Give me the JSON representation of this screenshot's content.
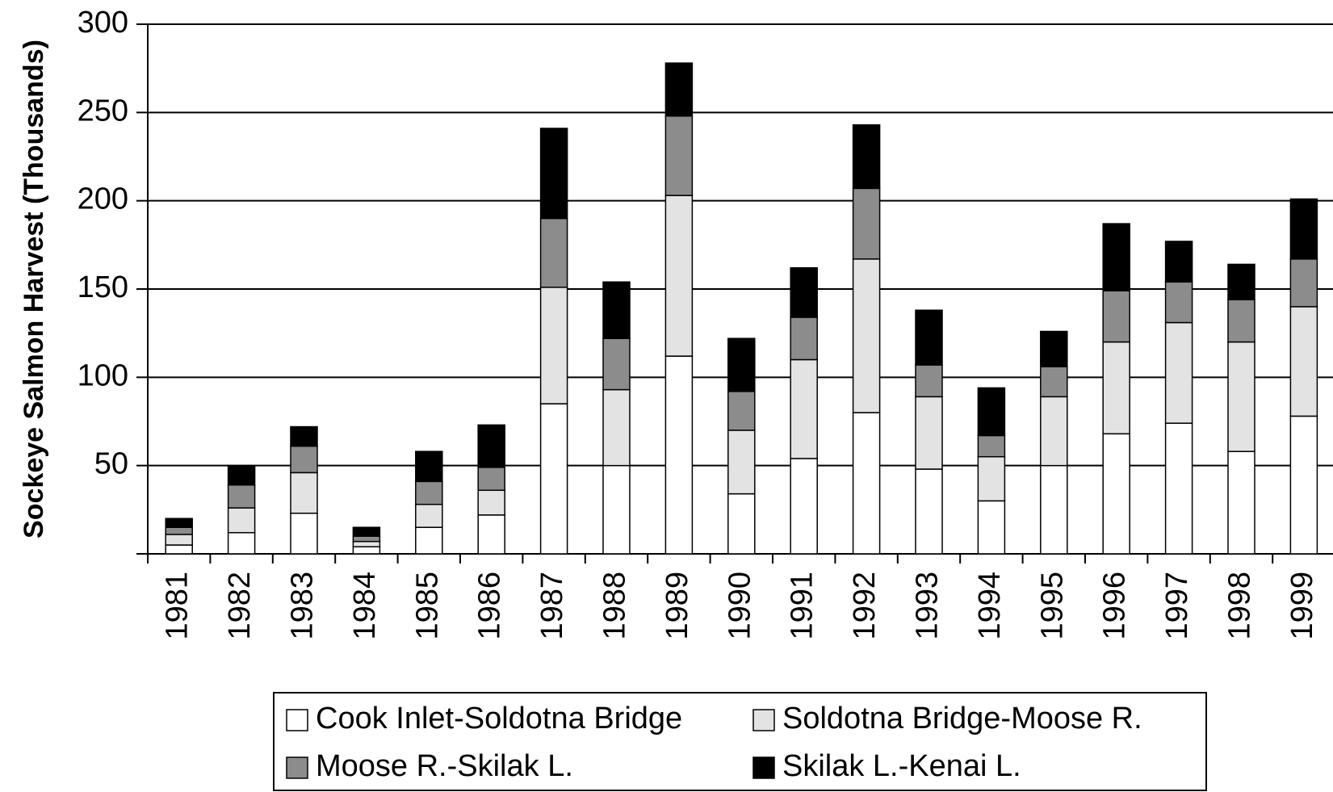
{
  "chart_data": {
    "type": "stacked_bar",
    "y_label": "Sockeye Salmon Harvest (Thousands)",
    "categories": [
      "1981",
      "1982",
      "1983",
      "1984",
      "1985",
      "1986",
      "1987",
      "1988",
      "1989",
      "1990",
      "1991",
      "1992",
      "1993",
      "1994",
      "1995",
      "1996",
      "1997",
      "1998",
      "1999"
    ],
    "series": [
      {
        "name": "Cook Inlet-Soldotna Bridge",
        "color": "#ffffff",
        "values": [
          5,
          12,
          23,
          4,
          15,
          22,
          85,
          50,
          112,
          34,
          54,
          80,
          48,
          30,
          50,
          68,
          74,
          58,
          78
        ]
      },
      {
        "name": "Soldotna Bridge-Moose R.",
        "color": "#e3e3e3",
        "values": [
          6,
          14,
          23,
          3,
          13,
          14,
          66,
          43,
          91,
          36,
          56,
          87,
          41,
          25,
          39,
          52,
          57,
          62,
          62
        ]
      },
      {
        "name": "Moose R.-Skilak L.",
        "color": "#8c8c8c",
        "values": [
          4,
          13,
          15,
          3,
          13,
          13,
          39,
          29,
          45,
          22,
          24,
          40,
          18,
          12,
          17,
          29,
          23,
          24,
          27
        ]
      },
      {
        "name": "Skilak L.-Kenai L.",
        "color": "#000000",
        "values": [
          5,
          11,
          11,
          5,
          17,
          24,
          51,
          32,
          30,
          30,
          28,
          36,
          31,
          27,
          20,
          38,
          23,
          20,
          34
        ]
      }
    ],
    "ylim": [
      0,
      300
    ],
    "yticks": [
      50,
      100,
      150,
      200,
      250,
      300
    ],
    "grid": true,
    "legend": "bottom"
  }
}
